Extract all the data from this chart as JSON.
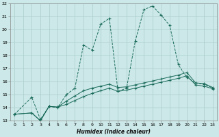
{
  "xlabel": "Humidex (Indice chaleur)",
  "bg_color": "#cce8e8",
  "grid_color": "#aacccc",
  "line_color": "#1a6b5a",
  "xlim": [
    -0.5,
    23.5
  ],
  "ylim": [
    13,
    22
  ],
  "xticks": [
    0,
    1,
    2,
    3,
    4,
    5,
    6,
    7,
    8,
    9,
    10,
    11,
    12,
    13,
    14,
    15,
    16,
    17,
    18,
    19,
    20,
    21,
    22,
    23
  ],
  "yticks": [
    13,
    14,
    15,
    16,
    17,
    18,
    19,
    20,
    21,
    22
  ],
  "line1_x": [
    0,
    2,
    3,
    4,
    5,
    6,
    7,
    8,
    9,
    10,
    11,
    12,
    13,
    14,
    15,
    16,
    17,
    18,
    19,
    20,
    21,
    22,
    23
  ],
  "line1_y": [
    13.5,
    14.8,
    13.1,
    14.1,
    14.0,
    15.0,
    15.5,
    18.8,
    18.4,
    20.4,
    20.85,
    15.25,
    15.5,
    19.1,
    21.5,
    21.8,
    21.1,
    20.3,
    17.3,
    16.3,
    15.9,
    15.8,
    15.5
  ],
  "line2_x": [
    0,
    2,
    3,
    4,
    5,
    6,
    7,
    8,
    9,
    10,
    11,
    12,
    13,
    14,
    15,
    16,
    17,
    18,
    19,
    20,
    21,
    22,
    23
  ],
  "line2_y": [
    13.5,
    13.6,
    13.0,
    14.1,
    14.05,
    14.5,
    14.9,
    15.3,
    15.5,
    15.65,
    15.8,
    15.55,
    15.6,
    15.75,
    15.9,
    16.05,
    16.2,
    16.35,
    16.5,
    16.7,
    15.9,
    15.85,
    15.55
  ],
  "line3_x": [
    0,
    2,
    3,
    4,
    5,
    6,
    7,
    8,
    9,
    10,
    11,
    12,
    13,
    14,
    15,
    16,
    17,
    18,
    19,
    20,
    21,
    22,
    23
  ],
  "line3_y": [
    13.5,
    13.6,
    13.0,
    14.1,
    14.05,
    14.25,
    14.55,
    14.85,
    15.1,
    15.3,
    15.5,
    15.25,
    15.35,
    15.5,
    15.65,
    15.8,
    15.95,
    16.1,
    16.25,
    16.45,
    15.75,
    15.65,
    15.45
  ]
}
